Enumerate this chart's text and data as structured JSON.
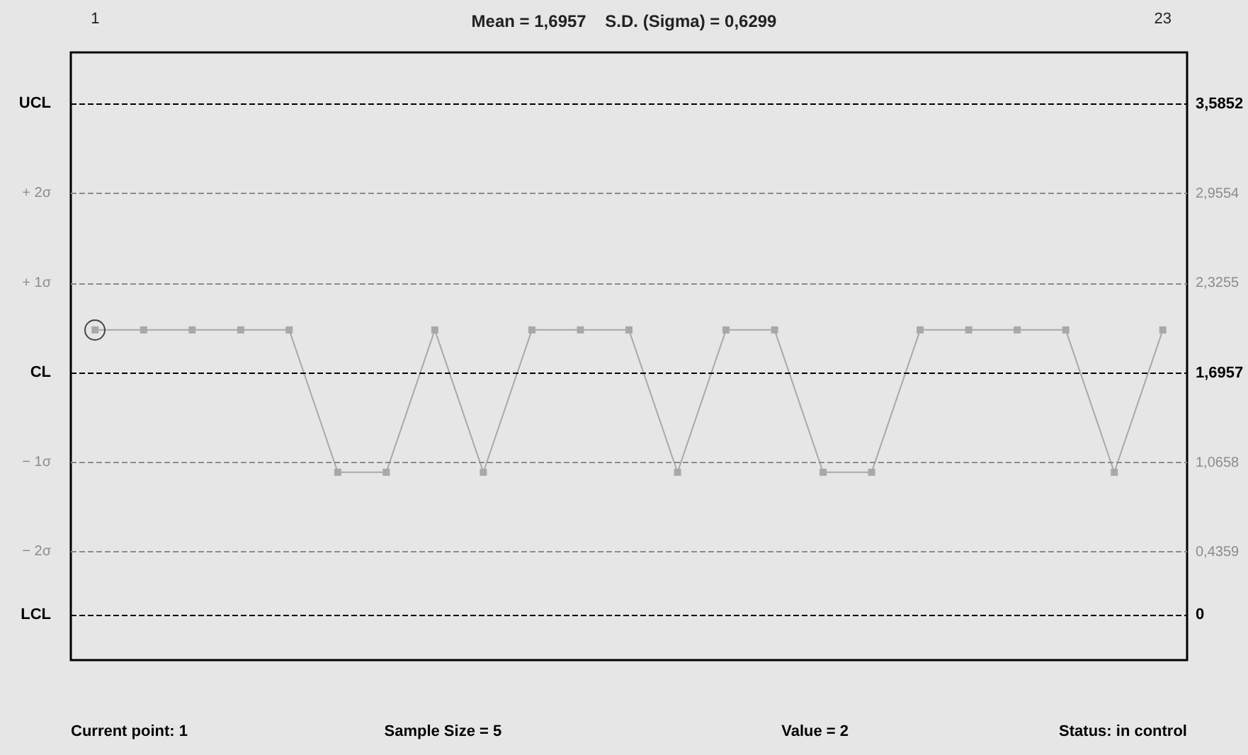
{
  "chart_data": {
    "type": "line",
    "title": "Mean = 1,6957    S.D. (Sigma) = 0,6299",
    "x": [
      1,
      2,
      3,
      4,
      5,
      6,
      7,
      8,
      9,
      10,
      11,
      12,
      13,
      14,
      15,
      16,
      17,
      18,
      19,
      20,
      21,
      22,
      23
    ],
    "series": [
      {
        "color": "#a8a8a8",
        "values": [
          2,
          2,
          2,
          2,
          2,
          1,
          1,
          2,
          1,
          2,
          2,
          2,
          1,
          2,
          2,
          1,
          1,
          2,
          2,
          2,
          2,
          1,
          2
        ]
      }
    ],
    "xlim": [
      0.5,
      23.5
    ],
    "xticks": [
      1,
      23
    ],
    "ylim": [
      -0.32,
      3.95
    ],
    "yticks": [
      {
        "value": 3.5852,
        "label": "3,5852"
      },
      {
        "value": 2.9554,
        "label": "2,9554"
      },
      {
        "value": 2.3255,
        "label": "2,3255"
      },
      {
        "value": 1.6957,
        "label": "1,6957"
      },
      {
        "value": 1.0658,
        "label": "1,0658"
      },
      {
        "value": 0.4359,
        "label": "0,4359"
      },
      0
    ],
    "ref_lines": [
      {
        "axis": "y",
        "value": 3.5852,
        "label": "UCL",
        "color": "#000000",
        "line_style": "dashed"
      },
      {
        "axis": "y",
        "value": 2.9554,
        "label": "+ 2σ",
        "color": "#8c8c8c",
        "line_style": "dashed"
      },
      {
        "axis": "y",
        "value": 2.3255,
        "label": "+ 1σ",
        "color": "#8c8c8c",
        "line_style": "dashed"
      },
      {
        "axis": "y",
        "value": 1.6957,
        "label": "CL",
        "color": "#000000",
        "line_style": "dashed"
      },
      {
        "axis": "y",
        "value": 1.0658,
        "label": "− 1σ",
        "color": "#8c8c8c",
        "line_style": "dashed"
      },
      {
        "axis": "y",
        "value": 0.4359,
        "label": "− 2σ",
        "color": "#8c8c8c",
        "line_style": "dashed"
      },
      {
        "axis": "y",
        "value": 0,
        "label": "LCL",
        "color": "#000000",
        "line_style": "dashed"
      }
    ],
    "annotations": [
      "Current point: 1",
      "Sample Size = 5",
      "Value = 2",
      "Status: in control"
    ],
    "marker": "square",
    "line_style": "solid",
    "grid": false
  }
}
